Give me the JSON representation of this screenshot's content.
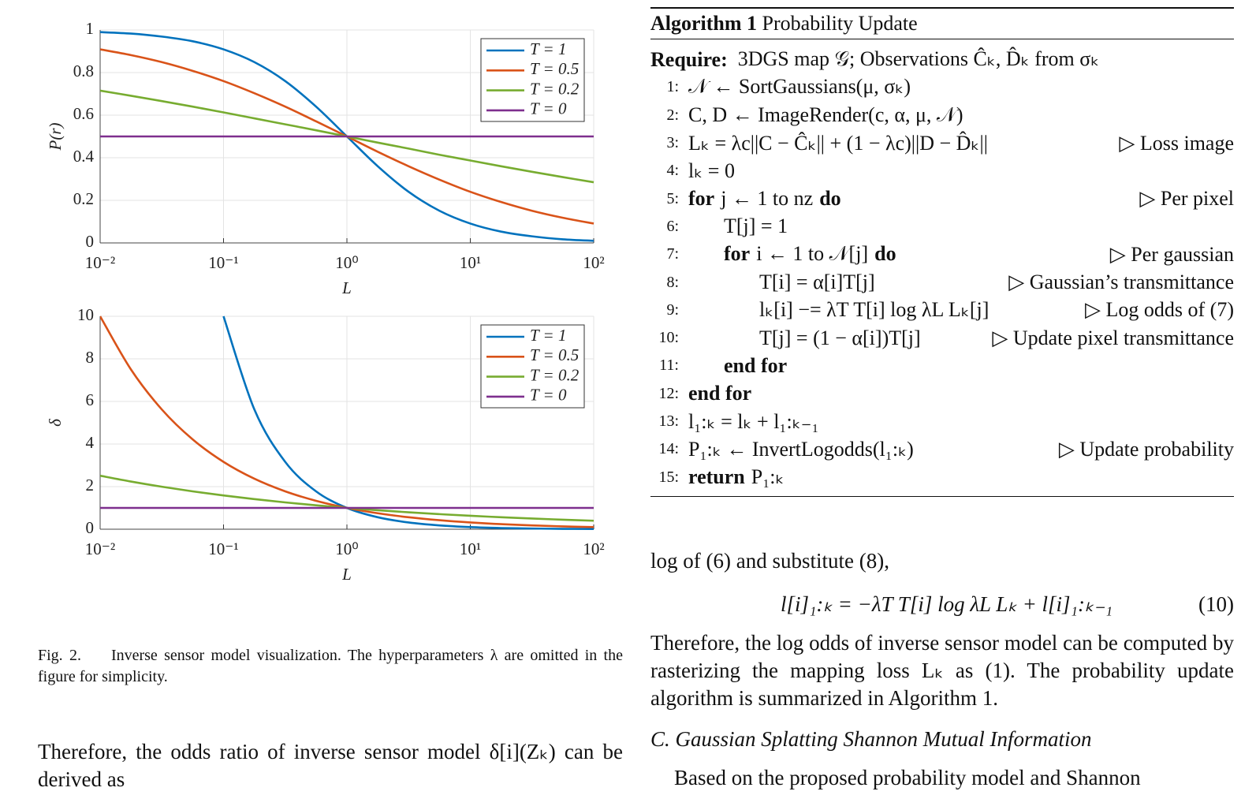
{
  "chart_data": [
    {
      "type": "line",
      "xlabel": "L",
      "ylabel": "P(r)",
      "log_x": true,
      "grid": true,
      "legend": "upper right",
      "x": [
        0.01,
        0.01778,
        0.03162,
        0.05623,
        0.1,
        0.1778,
        0.3162,
        0.5623,
        1,
        1.778,
        3.162,
        5.623,
        10,
        17.78,
        31.62,
        56.23,
        100
      ],
      "xlim": [
        0.01,
        100
      ],
      "ylim": [
        0,
        1
      ],
      "xticks": [
        {
          "value": 0.01,
          "label": "10⁻²"
        },
        {
          "value": 0.1,
          "label": "10⁻¹"
        },
        {
          "value": 1,
          "label": "10⁰"
        },
        {
          "value": 10,
          "label": "10¹"
        },
        {
          "value": 100,
          "label": "10²"
        }
      ],
      "yticks": [
        0,
        0.2,
        0.4,
        0.6,
        0.8,
        1
      ],
      "series": [
        {
          "name": "T = 1",
          "color": "#0072bd",
          "values": [
            0.99,
            0.983,
            0.969,
            0.947,
            0.909,
            0.849,
            0.76,
            0.64,
            0.5,
            0.36,
            0.24,
            0.151,
            0.091,
            0.053,
            0.031,
            0.017,
            0.01
          ]
        },
        {
          "name": "T = 0.5",
          "color": "#d95319",
          "values": [
            0.909,
            0.882,
            0.849,
            0.808,
            0.76,
            0.703,
            0.64,
            0.571,
            0.5,
            0.428,
            0.36,
            0.297,
            0.24,
            0.192,
            0.151,
            0.118,
            0.091
          ]
        },
        {
          "name": "T = 0.2",
          "color": "#77ac30",
          "values": [
            0.715,
            0.691,
            0.666,
            0.64,
            0.613,
            0.585,
            0.557,
            0.529,
            0.5,
            0.471,
            0.443,
            0.414,
            0.387,
            0.36,
            0.334,
            0.309,
            0.285
          ]
        },
        {
          "name": "T = 0",
          "color": "#7e2f8e",
          "values": [
            0.5,
            0.5,
            0.5,
            0.5,
            0.5,
            0.5,
            0.5,
            0.5,
            0.5,
            0.5,
            0.5,
            0.5,
            0.5,
            0.5,
            0.5,
            0.5,
            0.5
          ]
        }
      ]
    },
    {
      "type": "line",
      "xlabel": "L",
      "ylabel": "δ",
      "log_x": true,
      "grid": true,
      "legend": "upper right",
      "x": [
        0.01,
        0.01778,
        0.03162,
        0.05623,
        0.1,
        0.1778,
        0.3162,
        0.5623,
        1,
        1.778,
        3.162,
        5.623,
        10,
        17.78,
        31.62,
        56.23,
        100
      ],
      "xlim": [
        0.01,
        100
      ],
      "ylim": [
        0,
        10
      ],
      "xticks": [
        {
          "value": 0.01,
          "label": "10⁻²"
        },
        {
          "value": 0.1,
          "label": "10⁻¹"
        },
        {
          "value": 1,
          "label": "10⁰"
        },
        {
          "value": 10,
          "label": "10¹"
        },
        {
          "value": 100,
          "label": "10²"
        }
      ],
      "yticks": [
        0,
        2,
        4,
        6,
        8,
        10
      ],
      "series": [
        {
          "name": "T = 1",
          "color": "#0072bd",
          "values": [
            null,
            null,
            null,
            null,
            10,
            5.623,
            3.162,
            1.778,
            1,
            0.562,
            0.316,
            0.178,
            0.1,
            0.056,
            0.032,
            0.018,
            0.01
          ]
        },
        {
          "name": "T = 0.5",
          "color": "#d95319",
          "values": [
            10,
            7.499,
            5.623,
            4.217,
            3.162,
            2.371,
            1.778,
            1.334,
            1,
            0.75,
            0.562,
            0.422,
            0.316,
            0.237,
            0.178,
            0.133,
            0.1
          ]
        },
        {
          "name": "T = 0.2",
          "color": "#77ac30",
          "values": [
            2.512,
            2.239,
            1.995,
            1.778,
            1.585,
            1.413,
            1.259,
            1.122,
            1,
            0.891,
            0.794,
            0.708,
            0.631,
            0.562,
            0.501,
            0.447,
            0.398
          ]
        },
        {
          "name": "T = 0",
          "color": "#7e2f8e",
          "values": [
            1,
            1,
            1,
            1,
            1,
            1,
            1,
            1,
            1,
            1,
            1,
            1,
            1,
            1,
            1,
            1,
            1
          ]
        }
      ]
    }
  ],
  "caption": {
    "label": "Fig. 2.",
    "text": "Inverse sensor model visualization. The hyperparameters λ are omitted in the figure for simplicity."
  },
  "left_text": "Therefore, the odds ratio of inverse sensor model δ[i](Zₖ) can be derived as",
  "algorithm": {
    "label": "Algorithm 1",
    "title": "Probability Update",
    "require_label": "Require:",
    "require": "3DGS map 𝒢; Observations Ĉₖ, D̂ₖ from σₖ",
    "lines": [
      {
        "num": "1:",
        "text": "𝒩 ← SortGaussians(μ, σₖ)"
      },
      {
        "num": "2:",
        "text": "C, D ← ImageRender(c, α, μ, 𝒩)"
      },
      {
        "num": "3:",
        "text": "Lₖ = λc||C − Ĉₖ|| + (1 − λc)||D − D̂ₖ||",
        "comment": "▷ Loss image"
      },
      {
        "num": "4:",
        "text": "lₖ = 0"
      },
      {
        "num": "5:",
        "kw": "for",
        "text": "j ← 1 to nz",
        "kw_end": "do",
        "comment": "▷ Per pixel"
      },
      {
        "num": "6:",
        "text": "T[j] = 1"
      },
      {
        "num": "7:",
        "kw": "for",
        "text": "i ← 1 to 𝒩[j]",
        "kw_end": "do",
        "comment": "▷ Per gaussian"
      },
      {
        "num": "8:",
        "text": "T[i] = α[i]T[j]",
        "comment": "▷ Gaussian’s transmittance"
      },
      {
        "num": "9:",
        "text": "lₖ[i] −= λT T[i] log λL Lₖ[j]",
        "comment": "▷ Log odds of (7)"
      },
      {
        "num": "10:",
        "text": "T[j] = (1 − α[i])T[j]",
        "comment": "▷ Update pixel transmittance"
      },
      {
        "num": "11:",
        "kw": "end for"
      },
      {
        "num": "12:",
        "kw": "end for"
      },
      {
        "num": "13:",
        "text": "l₁:ₖ = lₖ + l₁:ₖ₋₁"
      },
      {
        "num": "14:",
        "text": "P₁:ₖ ← InvertLogodds(l₁:ₖ)",
        "comment": "▷ Update probability"
      },
      {
        "num": "15:",
        "kw": "return",
        "text": "P₁:ₖ"
      }
    ]
  },
  "right_text": {
    "intro": "log of (6) and substitute (8),",
    "equation": "l[i]₁:ₖ = −λT T[i] log λL Lₖ + l[i]₁:ₖ₋₁",
    "equation_number": "(10)",
    "paragraph": "Therefore, the log odds of inverse sensor model can be computed by rasterizing the mapping loss Lₖ as (1). The probability update algorithm is summarized in Algorithm 1.",
    "heading": "C. Gaussian Splatting Shannon Mutual Information",
    "next": "Based on the proposed probability model and Shannon"
  }
}
